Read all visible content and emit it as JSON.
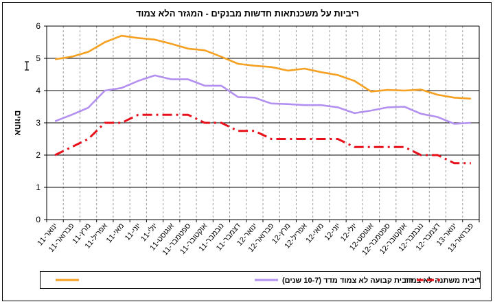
{
  "chart_data": {
    "type": "line",
    "title": "ריביות על משכנתאות חדשות מבנקים - המגזר הלא צמוד",
    "ylabel": "אחוזים",
    "xlabel": "",
    "ylim": [
      0,
      6
    ],
    "yticks": [
      0,
      1,
      2,
      3,
      4,
      5,
      6
    ],
    "grid": "horizontal",
    "legend_position": "bottom",
    "x": [
      "ינואר-11",
      "פברואר-11",
      "מרץ-11",
      "אפריל-11",
      "מאי-11",
      "יוני-11",
      "יולי-11",
      "אוגוסט-11",
      "ספטמבר-11",
      "אוקטובר-11",
      "נובמבר-11",
      "דצמבר-11",
      "ינואר-12",
      "פברואר-12",
      "מרץ-12",
      "אפריל-12",
      "מאי-12",
      "יוני-12",
      "יולי-12",
      "אוגוסט-12",
      "ספטמבר-12",
      "אוקטובר-12",
      "נובמבר-12",
      "דצמבר-12",
      "ינואר-13",
      "פברואר-13"
    ],
    "series": [
      {
        "name": "ריבית קבועה לא צמוד מדד (10-7 שנים)",
        "color": "#f5a021",
        "style": "solid",
        "values": [
          4.97,
          5.05,
          5.2,
          5.5,
          5.7,
          5.63,
          5.58,
          5.45,
          5.3,
          5.25,
          5.05,
          4.83,
          4.77,
          4.73,
          4.62,
          4.68,
          4.57,
          4.48,
          4.3,
          3.97,
          4.02,
          4.0,
          4.03,
          3.87,
          3.78,
          3.75
        ]
      },
      {
        "name": "סך ריבית משתנה לא צמוד",
        "color": "#b38ff0",
        "style": "solid",
        "values": [
          3.05,
          3.25,
          3.47,
          4.0,
          4.08,
          4.3,
          4.47,
          4.35,
          4.35,
          4.15,
          4.15,
          3.8,
          3.78,
          3.6,
          3.58,
          3.55,
          3.55,
          3.48,
          3.3,
          3.38,
          3.48,
          3.5,
          3.28,
          3.18,
          2.97,
          3.0
        ]
      },
      {
        "name": "ריבית ב\"י",
        "color": "#e8101a",
        "style": "dashed",
        "values": [
          2.0,
          2.25,
          2.5,
          3.0,
          3.0,
          3.25,
          3.25,
          3.25,
          3.25,
          3.0,
          3.0,
          2.75,
          2.75,
          2.5,
          2.5,
          2.5,
          2.5,
          2.5,
          2.25,
          2.25,
          2.25,
          2.25,
          2.0,
          2.0,
          1.75,
          1.75
        ]
      }
    ]
  }
}
